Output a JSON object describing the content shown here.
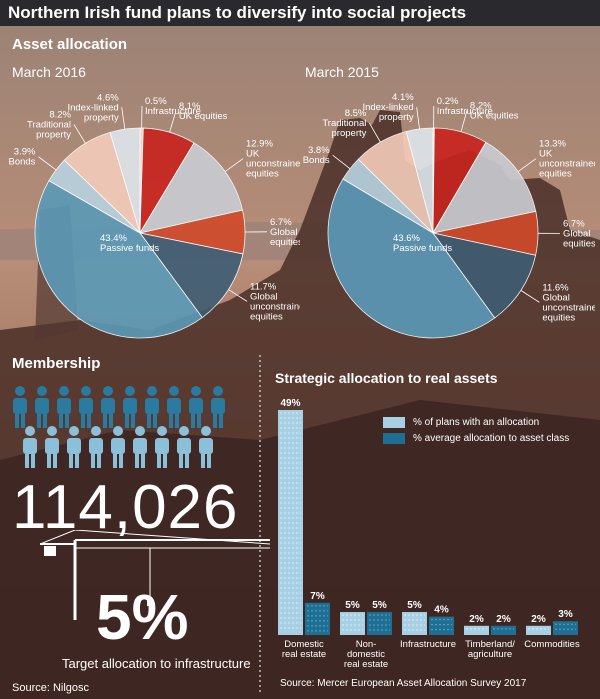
{
  "title": "Northern Irish fund plans to diversify into social projects",
  "asset_allocation": {
    "heading": "Asset allocation",
    "pies": [
      {
        "period": "March 2016"
      },
      {
        "period": "March 2015"
      }
    ]
  },
  "membership": {
    "heading": "Membership",
    "count": "114,026",
    "target_pct": "5%",
    "target_label": "Target allocation to infrastructure",
    "source": "Source: Nilgosc"
  },
  "real_assets": {
    "heading": "Strategic allocation to real assets",
    "legend": [
      "% of plans with an allocation",
      "% average allocation to asset class"
    ],
    "source": "Source: Mercer European Asset Allocation Survey 2017"
  },
  "colors": {
    "passive": "#5b9ab8",
    "bonds": "#b8d3e2",
    "traditional": "#f4ccbb",
    "index_linked": "#dfe6ec",
    "infrastructure": "#f7ddd2",
    "uk_equities": "#c8231d",
    "uk_unconstrained": "#c9cdd3",
    "global_equities": "#d14a2a",
    "global_unconstrained": "#3e5d74",
    "bar_plans": "#a8d0e4",
    "bar_average": "#1e6f93"
  },
  "chart_data": [
    {
      "type": "pie",
      "title": "March 2016",
      "slices": [
        {
          "label": "Infrastructure",
          "value": 0.5,
          "value_label": "0.5%"
        },
        {
          "label": "UK equities",
          "value": 8.1,
          "value_label": "8.1%"
        },
        {
          "label": "UK unconstrained equities",
          "value": 12.9,
          "value_label": "12.9%"
        },
        {
          "label": "Global equities",
          "value": 6.7,
          "value_label": "6.7%"
        },
        {
          "label": "Global unconstrained equities",
          "value": 11.7,
          "value_label": "11.7%"
        },
        {
          "label": "Passive funds",
          "value": 43.4,
          "value_label": "43.4%"
        },
        {
          "label": "Bonds",
          "value": 3.9,
          "value_label": "3.9%"
        },
        {
          "label": "Traditional property",
          "value": 8.2,
          "value_label": "8.2%"
        },
        {
          "label": "Index-linked property",
          "value": 4.6,
          "value_label": "4.6%"
        }
      ]
    },
    {
      "type": "pie",
      "title": "March 2015",
      "slices": [
        {
          "label": "Infrastructure",
          "value": 0.2,
          "value_label": "0.2%"
        },
        {
          "label": "UK equities",
          "value": 8.2,
          "value_label": "8.2%"
        },
        {
          "label": "UK unconstrained equities",
          "value": 13.3,
          "value_label": "13.3%"
        },
        {
          "label": "Global equities",
          "value": 6.7,
          "value_label": "6.7%"
        },
        {
          "label": "Global unconstrained equities",
          "value": 11.6,
          "value_label": "11.6%"
        },
        {
          "label": "Passive funds",
          "value": 43.6,
          "value_label": "43.6%"
        },
        {
          "label": "Bonds",
          "value": 3.8,
          "value_label": "3.8%"
        },
        {
          "label": "Traditional property",
          "value": 8.5,
          "value_label": "8.5%"
        },
        {
          "label": "Index-linked property",
          "value": 4.1,
          "value_label": "4.1%"
        }
      ]
    },
    {
      "type": "bar",
      "title": "Strategic allocation to real assets",
      "categories": [
        "Domestic real estate",
        "Non-domestic real estate",
        "Infrastructure",
        "Timberland/ agriculture",
        "Commodities"
      ],
      "series": [
        {
          "name": "% of plans with an allocation",
          "values": [
            49,
            5,
            5,
            2,
            2
          ]
        },
        {
          "name": "% average allocation to asset class",
          "values": [
            7,
            5,
            4,
            2,
            3
          ]
        }
      ],
      "ylim": [
        0,
        49
      ]
    }
  ]
}
